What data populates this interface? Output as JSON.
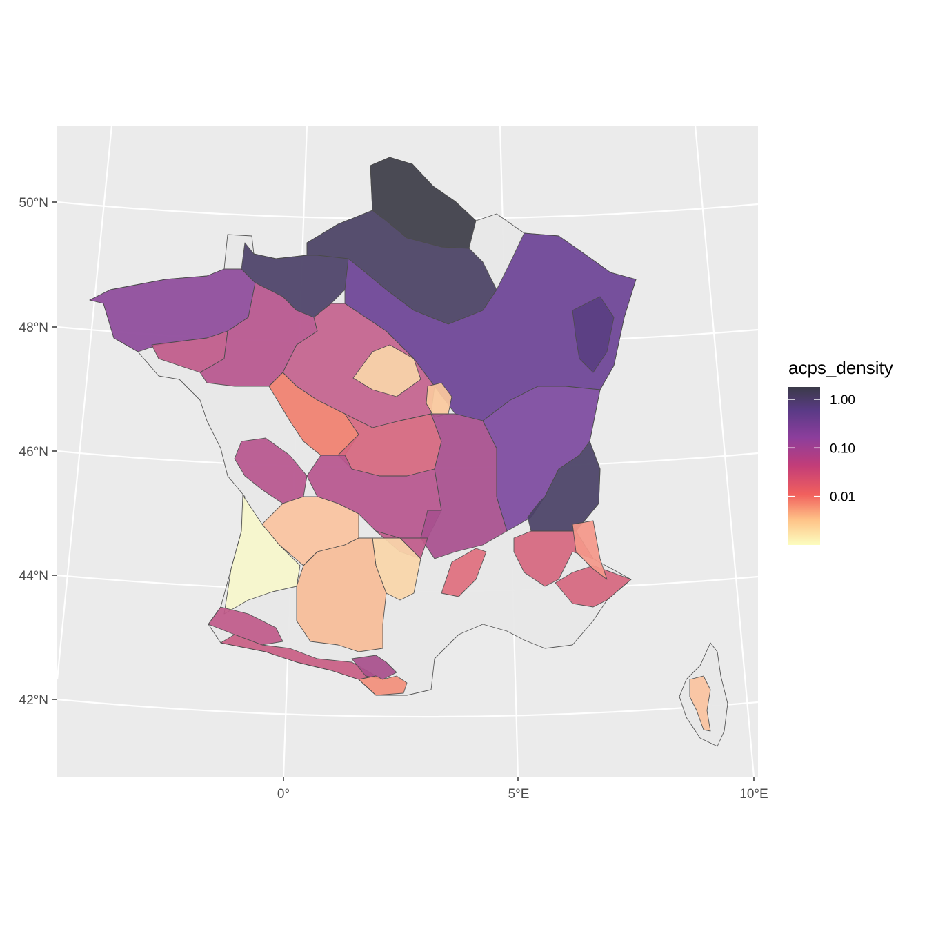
{
  "legend": {
    "title": "acps_density",
    "ticks": [
      {
        "label": "1.00",
        "value": 1.0
      },
      {
        "label": "0.10",
        "value": 0.1
      },
      {
        "label": "0.01",
        "value": 0.01
      }
    ],
    "range": [
      0.001,
      1.8
    ],
    "colors": [
      "#fcfdbf",
      "#fec287",
      "#f1605d",
      "#b63679",
      "#721f81",
      "#2d1160",
      "#000004"
    ]
  },
  "axes": {
    "lat_labels": [
      "50°N",
      "48°N",
      "46°N",
      "44°N",
      "42°N"
    ],
    "lon_labels": [
      "0°",
      "5°E",
      "10°E"
    ]
  },
  "colors": {
    "panel_bg": "#ebebeb",
    "gridline": "#ffffff",
    "no_data": "#e8e8e8",
    "border": "#4a4a4a"
  }
}
